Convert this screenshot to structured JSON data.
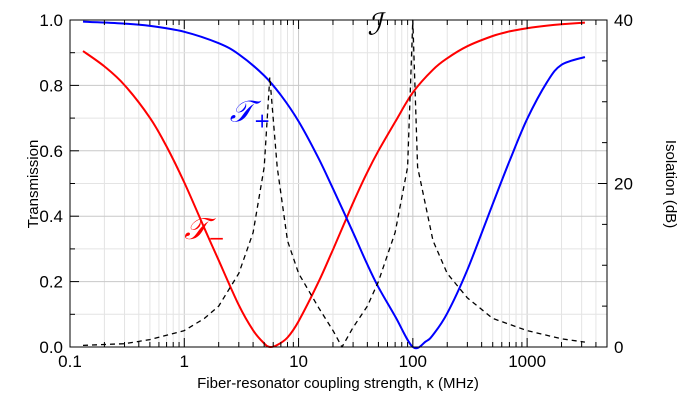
{
  "chart_data": {
    "type": "line",
    "title": "",
    "xlabel": "Fiber-resonator coupling strength, κ (MHz)",
    "ylabel": "Transmission",
    "y2label": "Isolation (dB)",
    "x_scale": "log",
    "xlim": [
      0.1,
      5000
    ],
    "ylim": [
      0,
      1
    ],
    "y2lim": [
      0,
      40
    ],
    "x_ticks": [
      0.1,
      1,
      10,
      100,
      1000
    ],
    "x_tick_labels": [
      "0.1",
      "1",
      "10",
      "100",
      "1000"
    ],
    "y_ticks": [
      0,
      0.2,
      0.4,
      0.6,
      0.8,
      1.0
    ],
    "y_tick_labels": [
      "0.0",
      "0.2",
      "0.4",
      "0.6",
      "0.8",
      "1.0"
    ],
    "y2_ticks": [
      0,
      20,
      40
    ],
    "y2_tick_labels": [
      "0",
      "20",
      "40"
    ],
    "grid": true,
    "series": [
      {
        "name": "𝒯−",
        "label_main": "𝒯",
        "label_sub": "−",
        "axis": "left",
        "color": "#ff0000",
        "style": "solid",
        "x": [
          0.13,
          0.2,
          0.3,
          0.5,
          0.7,
          1,
          1.5,
          2,
          3,
          4,
          5,
          5.6,
          6.5,
          8,
          10,
          15,
          20,
          25,
          30,
          40,
          50,
          70,
          100,
          150,
          200,
          300,
          500,
          700,
          1000,
          1500,
          2000,
          3200
        ],
        "values": [
          0.905,
          0.858,
          0.801,
          0.701,
          0.613,
          0.503,
          0.363,
          0.265,
          0.128,
          0.051,
          0.011,
          0.0,
          0.006,
          0.029,
          0.079,
          0.2,
          0.298,
          0.376,
          0.441,
          0.535,
          0.6,
          0.688,
          0.778,
          0.848,
          0.883,
          0.92,
          0.951,
          0.965,
          0.975,
          0.983,
          0.987,
          0.992
        ]
      },
      {
        "name": "𝒯+",
        "label_main": "𝒯",
        "label_sub": "+",
        "axis": "left",
        "color": "#0000ff",
        "style": "solid",
        "x": [
          0.13,
          0.3,
          0.5,
          1,
          2,
          3,
          5,
          7,
          10,
          15,
          20,
          30,
          40,
          50,
          70,
          100,
          130,
          150,
          200,
          300,
          500,
          700,
          1000,
          1500,
          2000,
          3200
        ],
        "values": [
          0.995,
          0.989,
          0.982,
          0.964,
          0.929,
          0.895,
          0.83,
          0.77,
          0.69,
          0.576,
          0.484,
          0.35,
          0.252,
          0.183,
          0.094,
          0.0,
          0.017,
          0.037,
          0.103,
          0.236,
          0.437,
          0.568,
          0.697,
          0.811,
          0.863,
          0.887
        ]
      },
      {
        "name": "ℐ",
        "label_main": "ℐ",
        "axis": "right",
        "color": "#000000",
        "style": "dashed",
        "x": [
          0.13,
          0.2,
          0.3,
          0.5,
          1,
          1.5,
          2,
          3,
          4,
          5,
          5.6,
          6.5,
          8,
          10,
          15,
          20,
          24,
          30,
          40,
          50,
          70,
          90,
          100,
          110,
          150,
          200,
          300,
          500,
          1000,
          2000,
          3200
        ],
        "values": [
          0.2,
          0.3,
          0.4,
          0.9,
          2.0,
          3.5,
          5.0,
          9.0,
          14.0,
          22.0,
          33.0,
          22.0,
          13.0,
          9.0,
          4.8,
          2.0,
          0.0,
          2.4,
          5.0,
          8.0,
          14.0,
          22.0,
          40.0,
          22.0,
          13.0,
          9.0,
          6.0,
          3.5,
          2.0,
          1.0,
          0.6
        ]
      }
    ],
    "annotations": [
      {
        "series": "ℐ",
        "text": "ℐ",
        "x": 40,
        "y_left": 0.955
      },
      {
        "series": "𝒯+",
        "text": "𝒯+",
        "x": 2.5,
        "y_left": 0.69
      },
      {
        "series": "𝒯−",
        "text": "𝒯−",
        "x": 1.0,
        "y_left": 0.33
      }
    ]
  }
}
